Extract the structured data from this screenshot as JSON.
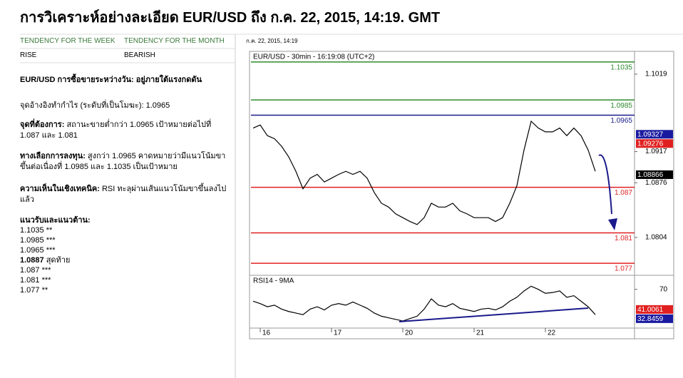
{
  "header": {
    "title": "การวิเคราะห์อย่างละเอียด EUR/USD ถึง ก.ค. 22, 2015, 14:19. GMT",
    "date": "ก.ค. 22, 2015, 14:19"
  },
  "tendency": {
    "columns": [
      "TENDENCY FOR THE WEEK",
      "TENDENCY FOR THE MONTH"
    ],
    "values": [
      "RISE",
      "BEARISH"
    ]
  },
  "analysis": {
    "headline": "EUR/USD การซื้อขายระหว่างวัน: อยู่ภายใต้แรงกดดัน",
    "pivot": "จุดอ้างอิงทำกำไร (ระดับที่เป็นโมฆะ): 1.0965",
    "sections": [
      {
        "label": "จุดที่ต้องการ:",
        "text": "สถานะขายต่ำกว่า 1.0965 เป้าหมายต่อไปที่ 1.087 และ 1.081"
      },
      {
        "label": "ทางเลือกการลงทุน:",
        "text": "สูงกว่า 1.0965 คาดหมายว่ามีแนวโน้มขาขึ้นต่อเนื่องที่ 1.0985 และ 1.1035 เป็นเป้าหมาย"
      },
      {
        "label": "ความเห็นในเชิงเทคนิค:",
        "text": "RSI ทะลุผ่านเส้นแนวโน้มขาขึ้นลงไปแล้ว"
      }
    ]
  },
  "levels": {
    "title": "แนวรับและแนวต้าน:",
    "items": [
      {
        "value": "1.1035",
        "note": "**"
      },
      {
        "value": "1.0985",
        "note": "***"
      },
      {
        "value": "1.0965",
        "note": "***"
      },
      {
        "value": "1.0887",
        "note": "สุดท้าย",
        "bold": true
      },
      {
        "value": "1.087",
        "note": "***"
      },
      {
        "value": "1.081",
        "note": "***"
      },
      {
        "value": "1.077",
        "note": "**"
      }
    ]
  },
  "chart_data": [
    {
      "type": "line",
      "title": "EUR/USD - 30min - 16:19:08 (UTC+2)",
      "color": "#000000",
      "values": [
        1.0948,
        1.0952,
        1.0938,
        1.0934,
        1.0924,
        1.091,
        1.0891,
        1.0868,
        1.0882,
        1.0887,
        1.0877,
        1.0882,
        1.0887,
        1.0891,
        1.0887,
        1.0891,
        1.0882,
        1.0863,
        1.0849,
        1.0844,
        1.0835,
        1.083,
        1.0825,
        1.0821,
        1.083,
        1.0849,
        1.0844,
        1.0844,
        1.0849,
        1.0839,
        1.0835,
        1.083,
        1.083,
        1.083,
        1.0825,
        1.083,
        1.0849,
        1.0872,
        1.0919,
        1.0957,
        1.0948,
        1.0943,
        1.0943,
        1.0948,
        1.0938,
        1.0948,
        1.0938,
        1.0919,
        1.0891
      ],
      "ylim": [
        1.0756,
        1.1049
      ],
      "yticks": [
        1.1019,
        1.0917,
        1.0876,
        1.0804
      ],
      "levels": [
        {
          "value": 1.1035,
          "color": "#2e8b2e"
        },
        {
          "value": 1.0985,
          "color": "#2e8b2e"
        },
        {
          "value": 1.0965,
          "color": "#1a1a8c"
        },
        {
          "value": 1.087,
          "color": "#e02020"
        },
        {
          "value": 1.081,
          "color": "#e02020"
        },
        {
          "value": 1.077,
          "color": "#e02020"
        }
      ],
      "price_boxes": [
        {
          "value": 1.09327,
          "color": "#1a1aa0"
        },
        {
          "value": 1.09276,
          "color": "#e02020"
        },
        {
          "value": 1.08866,
          "color": "#000000"
        }
      ]
    },
    {
      "type": "line",
      "title": "RSI14 - 9MA",
      "color": "#000000",
      "categories": [
        null,
        "16",
        null,
        null,
        null,
        null,
        null,
        null,
        null,
        null,
        null,
        "17",
        null,
        null,
        null,
        null,
        null,
        null,
        null,
        null,
        null,
        "20",
        null,
        null,
        null,
        null,
        null,
        null,
        null,
        null,
        null,
        "21",
        null,
        null,
        null,
        null,
        null,
        null,
        null,
        null,
        null,
        "22",
        null,
        null,
        null,
        null,
        null,
        null,
        null
      ],
      "values": [
        55,
        52,
        48,
        50,
        45,
        42,
        40,
        38,
        45,
        48,
        44,
        50,
        52,
        50,
        54,
        50,
        46,
        40,
        36,
        34,
        32,
        30,
        33,
        36,
        45,
        58,
        50,
        48,
        52,
        46,
        44,
        42,
        45,
        46,
        44,
        48,
        55,
        60,
        68,
        74,
        70,
        65,
        66,
        68,
        60,
        62,
        55,
        48,
        38
      ],
      "ylim": [
        21,
        86
      ],
      "yticks": [
        70
      ],
      "price_boxes": [
        {
          "value": 41.0061,
          "color": "#e02020"
        },
        {
          "value": 32.8459,
          "color": "#1a1aa0"
        }
      ]
    }
  ]
}
